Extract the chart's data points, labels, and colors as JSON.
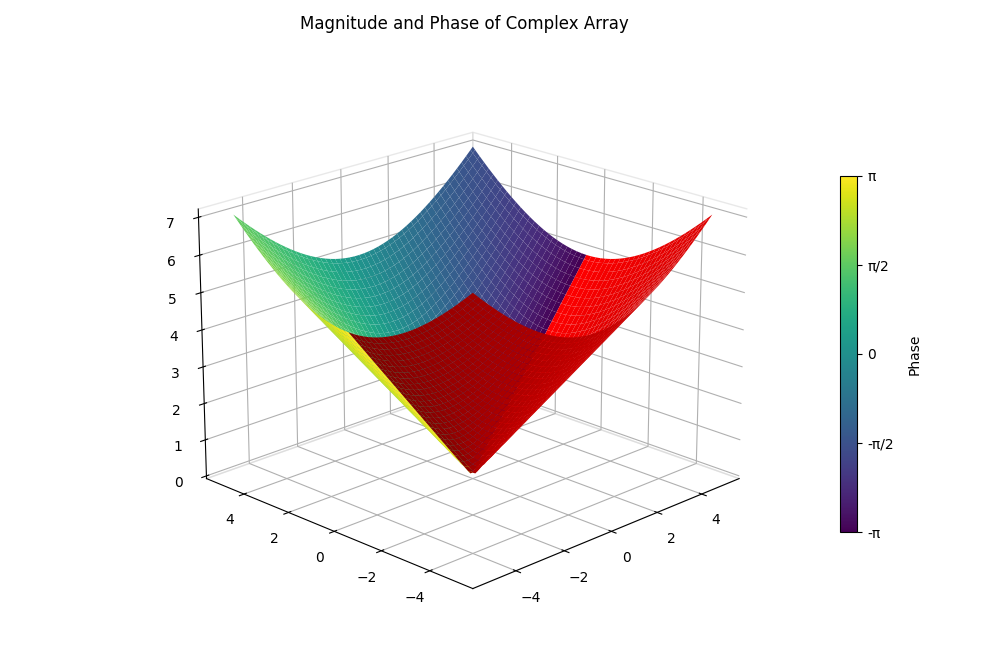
{
  "title": "Magnitude and Phase of Complex Array",
  "x_range": [
    -5,
    5
  ],
  "y_range": [
    -5,
    5
  ],
  "n_points": 100,
  "colormap": "viridis",
  "colorbar_label": "Phase",
  "colorbar_ticks": [
    -3.14159265,
    -1.5707963,
    0,
    1.5707963,
    3.14159265
  ],
  "colorbar_ticklabels": [
    "-π",
    "-π/2",
    "0",
    "π/2",
    "π"
  ],
  "z_ticks": [
    0,
    1,
    2,
    3,
    4,
    5,
    6,
    7
  ],
  "elev": 20,
  "azim": -135,
  "figsize": [
    10.0,
    6.66
  ],
  "dpi": 100
}
